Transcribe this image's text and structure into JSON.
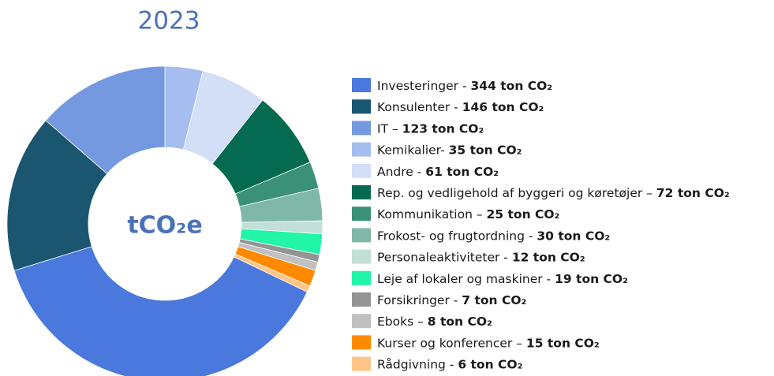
{
  "chart_data": {
    "type": "donut",
    "title": "2023",
    "center_label": "tCO₂e",
    "categories": [
      "Investeringer -",
      "Konsulenter -",
      "IT –",
      "Kemikalier-",
      "Andre -",
      "Rep. og vedligehold af byggeri og køretøjer –",
      "Kommunikation –",
      "Frokost- og frugtordning -",
      "Personaleaktiviteter -",
      "Leje af lokaler og maskiner -",
      "Forsikringer -",
      "Eboks –",
      "Kurser og konferencer –",
      "Rådgivning -"
    ],
    "values": [
      344,
      146,
      123,
      35,
      61,
      72,
      25,
      30,
      12,
      19,
      7,
      8,
      15,
      6
    ],
    "value_labels": [
      "344 ton CO₂",
      "146 ton CO₂",
      "123 ton CO₂",
      "35 ton CO₂",
      "61 ton CO₂",
      "72 ton CO₂",
      "25 ton CO₂",
      "30 ton CO₂",
      "12 ton CO₂",
      "19 ton CO₂",
      "7 ton CO₂",
      "8 ton CO₂",
      "15 ton CO₂",
      "6 ton CO₂"
    ],
    "colors": [
      "#4a78dc",
      "#1b5670",
      "#7499e0",
      "#a6bdf0",
      "#d3def7",
      "#046b50",
      "#3b9177",
      "#7fb8a6",
      "#c2e0d7",
      "#20f5a8",
      "#949494",
      "#c0c0c0",
      "#ff8a00",
      "#ffc488"
    ]
  }
}
